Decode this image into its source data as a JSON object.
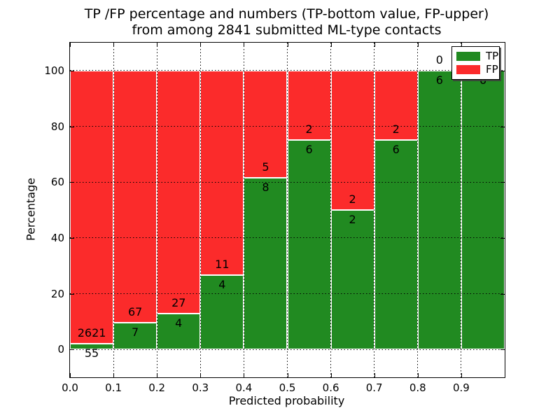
{
  "title": {
    "line1": "TP /FP percentage and numbers (TP-bottom value, FP-upper)",
    "line2": "from among 2841 submitted ML-type contacts"
  },
  "chart_data": {
    "type": "bar",
    "stacked": true,
    "normalized": "each bin stacked to 100%",
    "title": "TP /FP percentage and numbers (TP-bottom value, FP-upper) from among 2841 submitted ML-type contacts",
    "xlabel": "Predicted probability",
    "ylabel": "Percentage",
    "xlim": [
      0.0,
      1.0
    ],
    "ylim": [
      -10,
      110
    ],
    "grid": true,
    "total_contacts": 2841,
    "bin_width": 0.1,
    "categories": [
      "0.0-0.1",
      "0.1-0.2",
      "0.2-0.3",
      "0.3-0.4",
      "0.4-0.5",
      "0.5-0.6",
      "0.6-0.7",
      "0.7-0.8",
      "0.8-0.9",
      "0.9-1.0"
    ],
    "series": [
      {
        "name": "TP",
        "color": "#218a21",
        "counts": [
          55,
          7,
          4,
          4,
          8,
          6,
          2,
          6,
          6,
          6
        ]
      },
      {
        "name": "FP",
        "color": "#fb2b2b",
        "counts": [
          2621,
          67,
          27,
          11,
          5,
          2,
          2,
          2,
          0,
          0
        ]
      }
    ],
    "tp_percent": [
      2.1,
      9.5,
      12.9,
      26.7,
      61.5,
      75.0,
      50.0,
      75.0,
      100.0,
      100.0
    ],
    "xtick_values": [
      0.0,
      0.1,
      0.2,
      0.3,
      0.4,
      0.5,
      0.6,
      0.7,
      0.8,
      0.9
    ],
    "xtick_labels": [
      "0.0",
      "0.1",
      "0.2",
      "0.3",
      "0.4",
      "0.5",
      "0.6",
      "0.7",
      "0.8",
      "0.9"
    ],
    "ytick_values": [
      0,
      20,
      40,
      60,
      80,
      100
    ],
    "ytick_labels": [
      "0",
      "20",
      "40",
      "60",
      "80",
      "100"
    ],
    "legend": {
      "position": "upper right",
      "entries": [
        {
          "label": "TP",
          "color": "#218a21"
        },
        {
          "label": "FP",
          "color": "#fb2b2b"
        }
      ]
    }
  }
}
